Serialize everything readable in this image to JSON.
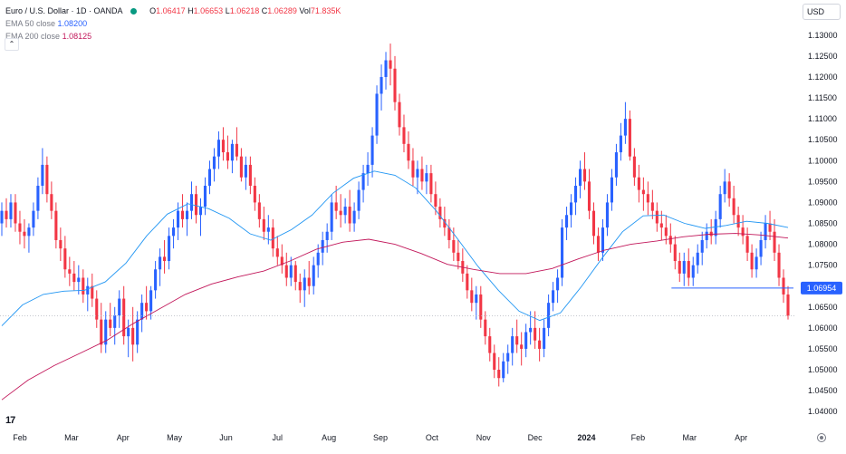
{
  "legend": {
    "symbol": "Euro / U.S. Dollar · 1D · OANDA",
    "open_label": "O",
    "open": "1.06417",
    "high_label": "H",
    "high": "1.06653",
    "low_label": "L",
    "low": "1.06218",
    "close_label": "C",
    "close": "1.06289",
    "vol_label": "Vol",
    "vol": "71.835K",
    "ema50_label": "EMA 50 close",
    "ema50_value": "1.08200",
    "ema200_label": "EMA 200 close",
    "ema200_value": "1.08125",
    "collapse_icon": "chevron-up-icon"
  },
  "toolbar": {
    "currency": "USD"
  },
  "branding": {
    "logo_text": "17"
  },
  "colors": {
    "up": "#2962ff",
    "down": "#f23645",
    "ema50": "#2196f3",
    "ema200": "#c2185b",
    "price_tag": "#2962ff",
    "grid_text": "#131722"
  },
  "chart_data": {
    "type": "candlestick",
    "title": "Euro / U.S. Dollar · 1D · OANDA",
    "xlabel": "",
    "ylabel": "",
    "ylim": [
      1.037,
      1.133
    ],
    "y_ticks": [
      "1.13000",
      "1.12500",
      "1.12000",
      "1.11500",
      "1.11000",
      "1.10500",
      "1.10000",
      "1.09500",
      "1.09000",
      "1.08500",
      "1.08000",
      "1.07500",
      "1.06500",
      "1.06000",
      "1.05500",
      "1.05000",
      "1.04500",
      "1.04000"
    ],
    "x_ticks": [
      "Feb",
      "Mar",
      "Apr",
      "May",
      "Jun",
      "Jul",
      "Aug",
      "Sep",
      "Oct",
      "Nov",
      "Dec",
      "2024",
      "Feb",
      "Mar",
      "Apr"
    ],
    "grid": false,
    "horizontal_line": {
      "value": 1.06954,
      "label": "1.06954",
      "start_month_index": 14.65
    },
    "last_price_line": 1.0629,
    "series": [
      {
        "name": "EMA 50 close",
        "values": [
          1.0605,
          1.0655,
          1.068,
          1.0688,
          1.069,
          1.071,
          1.0755,
          1.082,
          1.0872,
          1.0897,
          1.0885,
          1.0862,
          1.0825,
          1.081,
          1.0835,
          1.087,
          1.0922,
          1.0958,
          1.0975,
          1.0965,
          1.0935,
          1.088,
          1.0815,
          1.0748,
          1.069,
          1.064,
          1.0618,
          1.0636,
          1.0698,
          1.0766,
          1.083,
          1.0868,
          1.087,
          1.085,
          1.0838,
          1.0845,
          1.0855,
          1.085,
          1.084
        ]
      },
      {
        "name": "EMA 200 close",
        "values": [
          1.0428,
          1.0475,
          1.051,
          1.054,
          1.057,
          1.061,
          1.0645,
          1.068,
          1.0705,
          1.0722,
          1.0736,
          1.076,
          1.0788,
          1.0805,
          1.0812,
          1.08,
          1.0778,
          1.0752,
          1.074,
          1.073,
          1.073,
          1.0742,
          1.0765,
          1.0786,
          1.08,
          1.0808,
          1.0818,
          1.0824,
          1.0826,
          1.0822,
          1.0815
        ]
      }
    ],
    "candles_ohlc": [
      [
        1.085,
        1.09,
        1.082,
        1.088
      ],
      [
        1.088,
        1.091,
        1.084,
        1.086
      ],
      [
        1.086,
        1.092,
        1.084,
        1.09
      ],
      [
        1.09,
        1.092,
        1.083,
        1.085
      ],
      [
        1.085,
        1.088,
        1.08,
        1.083
      ],
      [
        1.083,
        1.086,
        1.079,
        1.082
      ],
      [
        1.082,
        1.085,
        1.078,
        1.084
      ],
      [
        1.084,
        1.09,
        1.082,
        1.088
      ],
      [
        1.088,
        1.096,
        1.086,
        1.094
      ],
      [
        1.094,
        1.103,
        1.092,
        1.099
      ],
      [
        1.099,
        1.101,
        1.09,
        1.092
      ],
      [
        1.092,
        1.095,
        1.086,
        1.088
      ],
      [
        1.088,
        1.09,
        1.079,
        1.081
      ],
      [
        1.081,
        1.084,
        1.076,
        1.079
      ],
      [
        1.079,
        1.082,
        1.072,
        1.074
      ],
      [
        1.074,
        1.077,
        1.07,
        1.073
      ],
      [
        1.073,
        1.076,
        1.069,
        1.071
      ],
      [
        1.071,
        1.075,
        1.068,
        1.072
      ],
      [
        1.072,
        1.074,
        1.066,
        1.068
      ],
      [
        1.068,
        1.072,
        1.064,
        1.07
      ],
      [
        1.07,
        1.073,
        1.065,
        1.067
      ],
      [
        1.067,
        1.069,
        1.06,
        1.062
      ],
      [
        1.062,
        1.066,
        1.054,
        1.056
      ],
      [
        1.056,
        1.064,
        1.054,
        1.062
      ],
      [
        1.062,
        1.066,
        1.058,
        1.06
      ],
      [
        1.06,
        1.065,
        1.056,
        1.063
      ],
      [
        1.063,
        1.069,
        1.06,
        1.067
      ],
      [
        1.067,
        1.07,
        1.056,
        1.058
      ],
      [
        1.058,
        1.062,
        1.053,
        1.06
      ],
      [
        1.06,
        1.065,
        1.052,
        1.056
      ],
      [
        1.056,
        1.064,
        1.054,
        1.062
      ],
      [
        1.062,
        1.068,
        1.059,
        1.066
      ],
      [
        1.066,
        1.07,
        1.062,
        1.064
      ],
      [
        1.064,
        1.07,
        1.062,
        1.069
      ],
      [
        1.069,
        1.076,
        1.067,
        1.074
      ],
      [
        1.074,
        1.079,
        1.07,
        1.077
      ],
      [
        1.077,
        1.081,
        1.073,
        1.076
      ],
      [
        1.076,
        1.084,
        1.074,
        1.082
      ],
      [
        1.082,
        1.086,
        1.079,
        1.084
      ],
      [
        1.084,
        1.09,
        1.081,
        1.088
      ],
      [
        1.088,
        1.092,
        1.084,
        1.086
      ],
      [
        1.086,
        1.09,
        1.082,
        1.088
      ],
      [
        1.088,
        1.095,
        1.086,
        1.092
      ],
      [
        1.092,
        1.094,
        1.085,
        1.087
      ],
      [
        1.087,
        1.091,
        1.082,
        1.089
      ],
      [
        1.089,
        1.096,
        1.087,
        1.094
      ],
      [
        1.094,
        1.1,
        1.092,
        1.098
      ],
      [
        1.098,
        1.103,
        1.095,
        1.101
      ],
      [
        1.101,
        1.107,
        1.098,
        1.105
      ],
      [
        1.105,
        1.108,
        1.1,
        1.102
      ],
      [
        1.102,
        1.106,
        1.098,
        1.1
      ],
      [
        1.1,
        1.105,
        1.097,
        1.104
      ],
      [
        1.104,
        1.108,
        1.1,
        1.101
      ],
      [
        1.101,
        1.103,
        1.095,
        1.096
      ],
      [
        1.096,
        1.101,
        1.093,
        1.099
      ],
      [
        1.099,
        1.101,
        1.092,
        1.094
      ],
      [
        1.094,
        1.096,
        1.088,
        1.09
      ],
      [
        1.09,
        1.092,
        1.084,
        1.086
      ],
      [
        1.086,
        1.089,
        1.081,
        1.083
      ],
      [
        1.083,
        1.087,
        1.08,
        1.084
      ],
      [
        1.084,
        1.086,
        1.077,
        1.079
      ],
      [
        1.079,
        1.082,
        1.075,
        1.077
      ],
      [
        1.077,
        1.08,
        1.073,
        1.075
      ],
      [
        1.075,
        1.078,
        1.07,
        1.072
      ],
      [
        1.072,
        1.077,
        1.07,
        1.075
      ],
      [
        1.075,
        1.076,
        1.069,
        1.071
      ],
      [
        1.071,
        1.073,
        1.066,
        1.069
      ],
      [
        1.069,
        1.074,
        1.065,
        1.072
      ],
      [
        1.072,
        1.076,
        1.068,
        1.07
      ],
      [
        1.07,
        1.077,
        1.068,
        1.075
      ],
      [
        1.075,
        1.08,
        1.072,
        1.078
      ],
      [
        1.078,
        1.083,
        1.075,
        1.081
      ],
      [
        1.081,
        1.085,
        1.078,
        1.083
      ],
      [
        1.083,
        1.092,
        1.081,
        1.09
      ],
      [
        1.09,
        1.094,
        1.086,
        1.088
      ],
      [
        1.088,
        1.092,
        1.084,
        1.087
      ],
      [
        1.087,
        1.091,
        1.085,
        1.089
      ],
      [
        1.089,
        1.093,
        1.083,
        1.085
      ],
      [
        1.085,
        1.09,
        1.083,
        1.088
      ],
      [
        1.088,
        1.095,
        1.086,
        1.093
      ],
      [
        1.093,
        1.099,
        1.09,
        1.097
      ],
      [
        1.097,
        1.102,
        1.094,
        1.099
      ],
      [
        1.099,
        1.108,
        1.096,
        1.106
      ],
      [
        1.106,
        1.118,
        1.104,
        1.116
      ],
      [
        1.116,
        1.123,
        1.112,
        1.12
      ],
      [
        1.12,
        1.126,
        1.117,
        1.124
      ],
      [
        1.124,
        1.128,
        1.118,
        1.122
      ],
      [
        1.122,
        1.125,
        1.112,
        1.114
      ],
      [
        1.114,
        1.116,
        1.106,
        1.108
      ],
      [
        1.108,
        1.111,
        1.102,
        1.104
      ],
      [
        1.104,
        1.107,
        1.098,
        1.1
      ],
      [
        1.1,
        1.103,
        1.094,
        1.096
      ],
      [
        1.096,
        1.1,
        1.092,
        1.098
      ],
      [
        1.098,
        1.101,
        1.093,
        1.095
      ],
      [
        1.095,
        1.099,
        1.092,
        1.097
      ],
      [
        1.097,
        1.099,
        1.09,
        1.092
      ],
      [
        1.092,
        1.095,
        1.087,
        1.089
      ],
      [
        1.089,
        1.091,
        1.084,
        1.086
      ],
      [
        1.086,
        1.089,
        1.082,
        1.084
      ],
      [
        1.084,
        1.086,
        1.079,
        1.081
      ],
      [
        1.081,
        1.084,
        1.076,
        1.078
      ],
      [
        1.078,
        1.081,
        1.074,
        1.076
      ],
      [
        1.076,
        1.079,
        1.071,
        1.073
      ],
      [
        1.073,
        1.075,
        1.067,
        1.069
      ],
      [
        1.069,
        1.072,
        1.064,
        1.066
      ],
      [
        1.066,
        1.07,
        1.062,
        1.068
      ],
      [
        1.068,
        1.07,
        1.06,
        1.062
      ],
      [
        1.062,
        1.064,
        1.056,
        1.058
      ],
      [
        1.058,
        1.06,
        1.052,
        1.054
      ],
      [
        1.054,
        1.056,
        1.048,
        1.05
      ],
      [
        1.05,
        1.053,
        1.046,
        1.048
      ],
      [
        1.048,
        1.054,
        1.047,
        1.052
      ],
      [
        1.052,
        1.056,
        1.049,
        1.054
      ],
      [
        1.054,
        1.06,
        1.051,
        1.058
      ],
      [
        1.058,
        1.062,
        1.054,
        1.056
      ],
      [
        1.056,
        1.059,
        1.051,
        1.055
      ],
      [
        1.055,
        1.061,
        1.053,
        1.059
      ],
      [
        1.059,
        1.064,
        1.056,
        1.06
      ],
      [
        1.06,
        1.064,
        1.055,
        1.057
      ],
      [
        1.057,
        1.06,
        1.052,
        1.055
      ],
      [
        1.055,
        1.062,
        1.053,
        1.06
      ],
      [
        1.06,
        1.068,
        1.058,
        1.066
      ],
      [
        1.066,
        1.071,
        1.064,
        1.069
      ],
      [
        1.069,
        1.074,
        1.066,
        1.072
      ],
      [
        1.072,
        1.086,
        1.07,
        1.084
      ],
      [
        1.084,
        1.089,
        1.081,
        1.087
      ],
      [
        1.087,
        1.092,
        1.084,
        1.09
      ],
      [
        1.09,
        1.096,
        1.087,
        1.094
      ],
      [
        1.094,
        1.1,
        1.091,
        1.098
      ],
      [
        1.098,
        1.102,
        1.093,
        1.095
      ],
      [
        1.095,
        1.098,
        1.086,
        1.088
      ],
      [
        1.088,
        1.09,
        1.08,
        1.082
      ],
      [
        1.082,
        1.084,
        1.076,
        1.078
      ],
      [
        1.078,
        1.086,
        1.076,
        1.084
      ],
      [
        1.084,
        1.092,
        1.082,
        1.09
      ],
      [
        1.09,
        1.098,
        1.088,
        1.096
      ],
      [
        1.096,
        1.104,
        1.094,
        1.102
      ],
      [
        1.102,
        1.109,
        1.1,
        1.106
      ],
      [
        1.106,
        1.114,
        1.104,
        1.11
      ],
      [
        1.11,
        1.112,
        1.1,
        1.101
      ],
      [
        1.101,
        1.103,
        1.094,
        1.096
      ],
      [
        1.096,
        1.099,
        1.09,
        1.093
      ],
      [
        1.093,
        1.096,
        1.088,
        1.092
      ],
      [
        1.092,
        1.095,
        1.087,
        1.09
      ],
      [
        1.09,
        1.093,
        1.086,
        1.088
      ],
      [
        1.088,
        1.09,
        1.083,
        1.085
      ],
      [
        1.085,
        1.088,
        1.081,
        1.084
      ],
      [
        1.084,
        1.087,
        1.08,
        1.082
      ],
      [
        1.082,
        1.085,
        1.078,
        1.08
      ],
      [
        1.08,
        1.082,
        1.074,
        1.076
      ],
      [
        1.076,
        1.078,
        1.071,
        1.073
      ],
      [
        1.073,
        1.078,
        1.07,
        1.076
      ],
      [
        1.076,
        1.079,
        1.07,
        1.072
      ],
      [
        1.072,
        1.077,
        1.07,
        1.075
      ],
      [
        1.075,
        1.08,
        1.073,
        1.078
      ],
      [
        1.078,
        1.083,
        1.075,
        1.081
      ],
      [
        1.081,
        1.085,
        1.079,
        1.083
      ],
      [
        1.083,
        1.086,
        1.08,
        1.082
      ],
      [
        1.082,
        1.088,
        1.08,
        1.086
      ],
      [
        1.086,
        1.094,
        1.084,
        1.092
      ],
      [
        1.092,
        1.098,
        1.09,
        1.095
      ],
      [
        1.095,
        1.097,
        1.089,
        1.091
      ],
      [
        1.091,
        1.094,
        1.085,
        1.087
      ],
      [
        1.087,
        1.089,
        1.082,
        1.084
      ],
      [
        1.084,
        1.087,
        1.08,
        1.082
      ],
      [
        1.082,
        1.084,
        1.076,
        1.078
      ],
      [
        1.078,
        1.08,
        1.072,
        1.074
      ],
      [
        1.074,
        1.079,
        1.072,
        1.077
      ],
      [
        1.077,
        1.083,
        1.075,
        1.081
      ],
      [
        1.081,
        1.087,
        1.079,
        1.085
      ],
      [
        1.085,
        1.088,
        1.081,
        1.083
      ],
      [
        1.083,
        1.086,
        1.076,
        1.078
      ],
      [
        1.078,
        1.08,
        1.07,
        1.072
      ],
      [
        1.072,
        1.074,
        1.066,
        1.068
      ],
      [
        1.068,
        1.07,
        1.062,
        1.0629
      ]
    ]
  }
}
